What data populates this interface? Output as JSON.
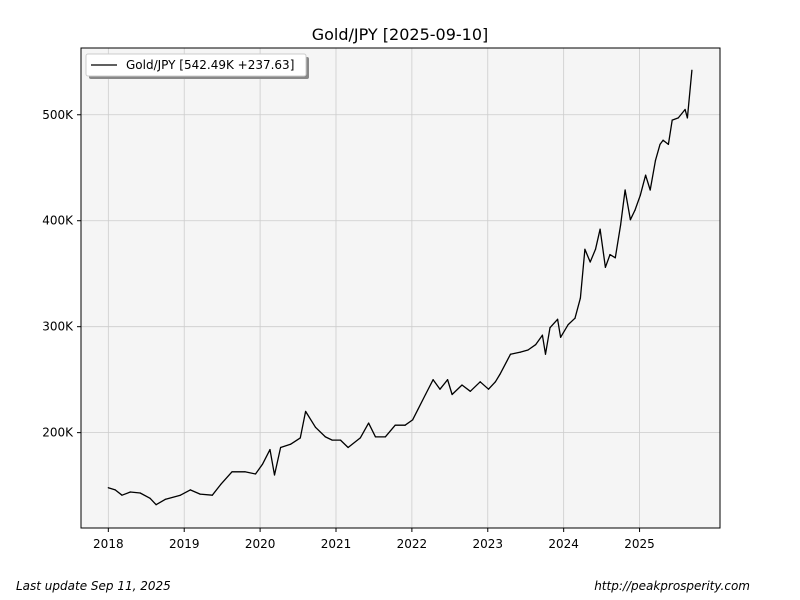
{
  "chart_data": {
    "type": "line",
    "title": "Gold/JPY  [2025-09-10]",
    "xlabel": "",
    "ylabel": "",
    "xlim": [
      2017.64,
      2026.06
    ],
    "ylim": [
      110,
      563
    ],
    "grid": true,
    "legend_placement": "top-left",
    "x_ticks": [
      2018,
      2019,
      2020,
      2021,
      2022,
      2023,
      2024,
      2025
    ],
    "x_tick_labels": [
      "2018",
      "2019",
      "2020",
      "2021",
      "2022",
      "2023",
      "2024",
      "2025"
    ],
    "y_ticks": [
      200,
      300,
      400,
      500
    ],
    "y_tick_labels": [
      "200K",
      "300K",
      "400K",
      "500K"
    ],
    "y_units": "thousand JPY",
    "series": [
      {
        "name": "Gold/JPY [542.49K +237.63]",
        "color": "#000000",
        "x": [
          2018.0,
          2018.09,
          2018.18,
          2018.29,
          2018.42,
          2018.55,
          2018.63,
          2018.75,
          2018.95,
          2019.08,
          2019.21,
          2019.37,
          2019.48,
          2019.63,
          2019.8,
          2019.94,
          2020.03,
          2020.13,
          2020.19,
          2020.27,
          2020.4,
          2020.53,
          2020.6,
          2020.73,
          2020.86,
          2020.95,
          2021.06,
          2021.16,
          2021.32,
          2021.43,
          2021.52,
          2021.65,
          2021.78,
          2021.91,
          2022.01,
          2022.08,
          2022.18,
          2022.28,
          2022.37,
          2022.47,
          2022.53,
          2022.66,
          2022.77,
          2022.9,
          2023.01,
          2023.1,
          2023.16,
          2023.3,
          2023.43,
          2023.53,
          2023.63,
          2023.72,
          2023.76,
          2023.82,
          2023.92,
          2023.96,
          2024.06,
          2024.15,
          2024.22,
          2024.28,
          2024.35,
          2024.42,
          2024.48,
          2024.55,
          2024.61,
          2024.68,
          2024.75,
          2024.81,
          2024.88,
          2024.94,
          2025.01,
          2025.08,
          2025.14,
          2025.21,
          2025.27,
          2025.31,
          2025.38,
          2025.43,
          2025.51,
          2025.6,
          2025.63,
          2025.69
        ],
        "y": [
          148,
          146,
          141,
          144,
          143,
          138,
          132,
          137,
          141,
          146,
          142,
          141,
          151,
          163,
          163,
          161,
          170,
          184,
          160,
          186,
          189,
          195,
          220,
          205,
          196,
          193,
          193,
          186,
          195,
          209,
          196,
          196,
          207,
          207,
          212,
          222,
          236,
          250,
          241,
          250,
          236,
          245,
          239,
          248,
          241,
          248,
          255,
          274,
          276,
          278,
          283,
          292,
          274,
          299,
          307,
          290,
          302,
          308,
          327,
          373,
          361,
          373,
          392,
          356,
          368,
          365,
          396,
          429,
          401,
          410,
          424,
          443,
          429,
          457,
          472,
          476,
          472,
          495,
          497,
          505,
          497,
          542
        ]
      }
    ]
  },
  "footer": {
    "last_update": "Last update Sep 11, 2025",
    "source_url": "http://peakprosperity.com"
  }
}
